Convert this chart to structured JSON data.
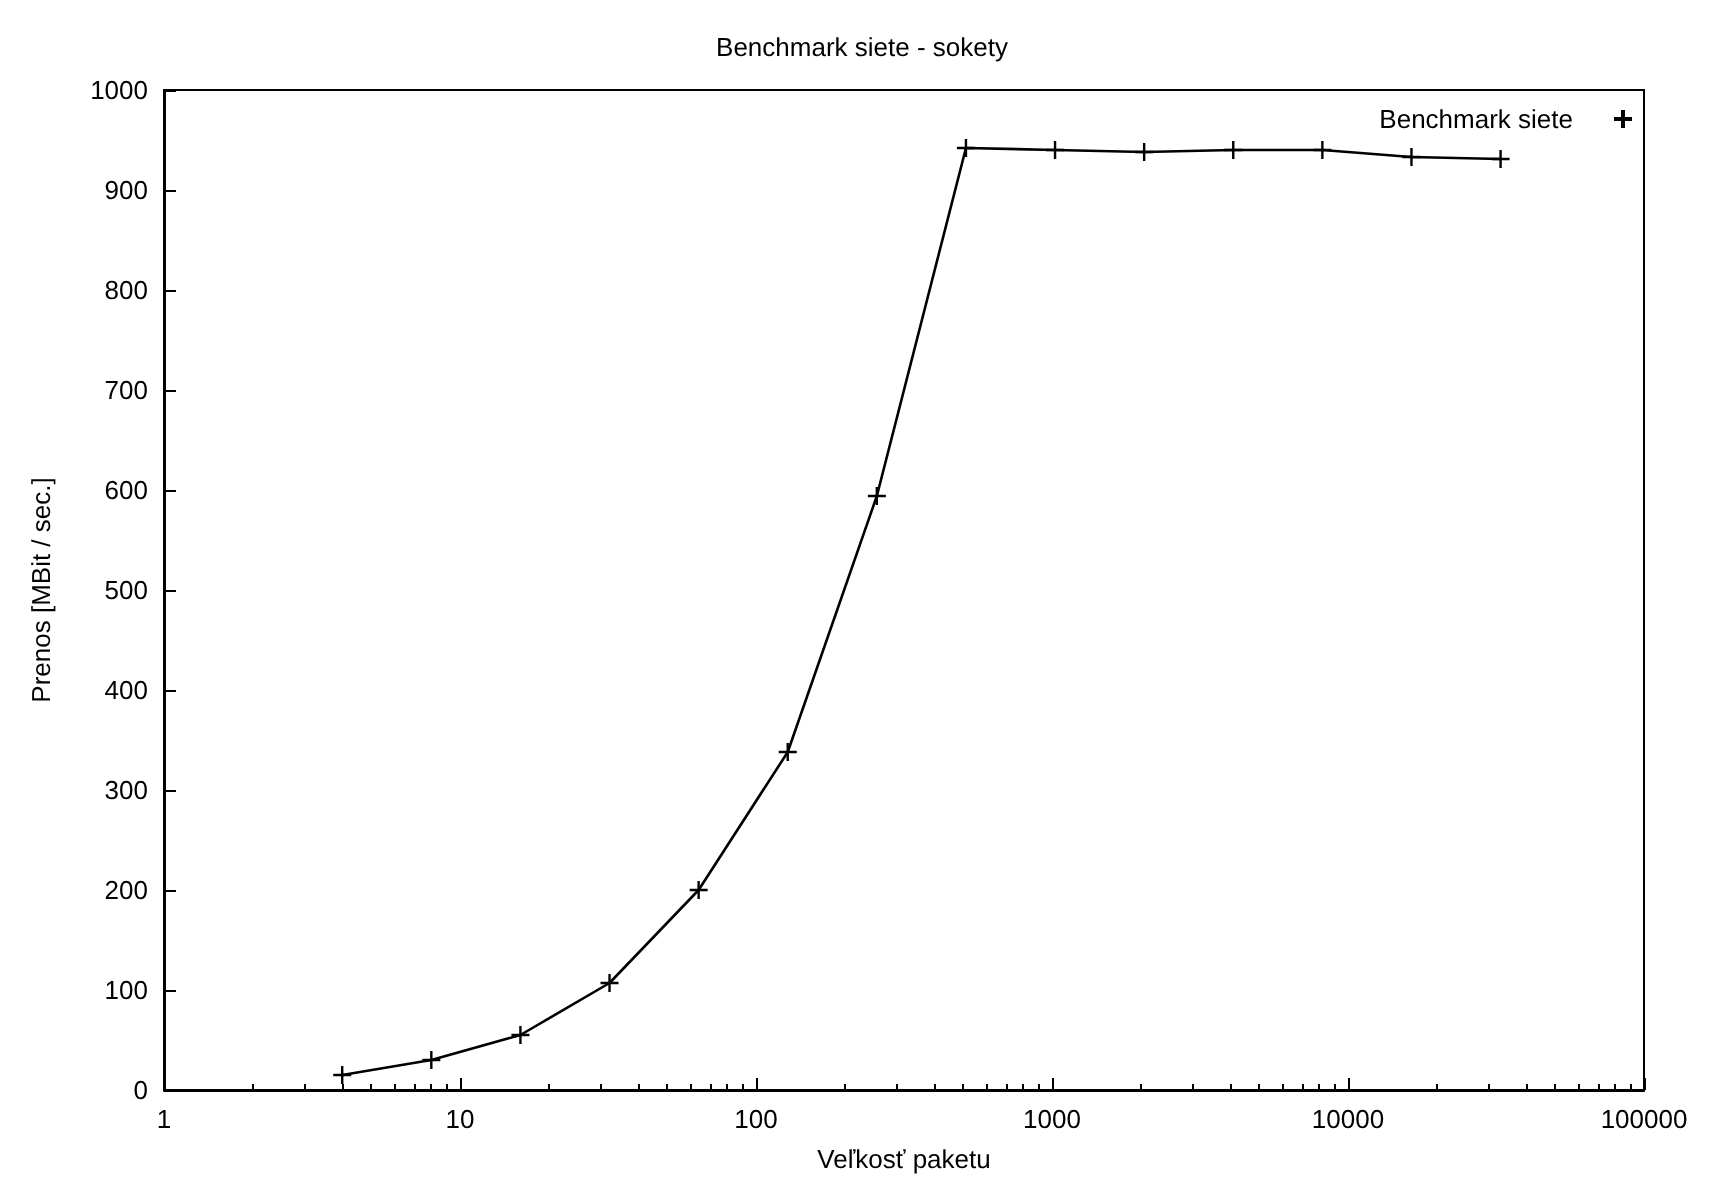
{
  "chart_data": {
    "type": "line",
    "title": "Benchmark siete - sokety",
    "xlabel": "Veľkosť paketu",
    "ylabel": "Prenos [MBit / sec.]",
    "x": [
      4,
      8,
      16,
      32,
      64,
      128,
      256,
      512,
      1024,
      2048,
      4096,
      8192,
      16384,
      32768
    ],
    "series": [
      {
        "name": "Benchmark siete",
        "color": "#000000",
        "values": [
          15,
          30,
          55,
          107,
          200,
          338,
          594,
          942,
          940,
          938,
          940,
          940,
          933,
          931
        ]
      }
    ],
    "xlim": [
      1,
      100000
    ],
    "xticks": [
      1,
      10,
      100,
      1000,
      10000,
      100000
    ],
    "ylim": [
      0,
      1000
    ],
    "yticks": [
      0,
      100,
      200,
      300,
      400,
      500,
      600,
      700,
      800,
      900,
      1000
    ],
    "log": "x",
    "grid": false,
    "legend": "top right",
    "marker": "cross",
    "line_style": "solid"
  }
}
